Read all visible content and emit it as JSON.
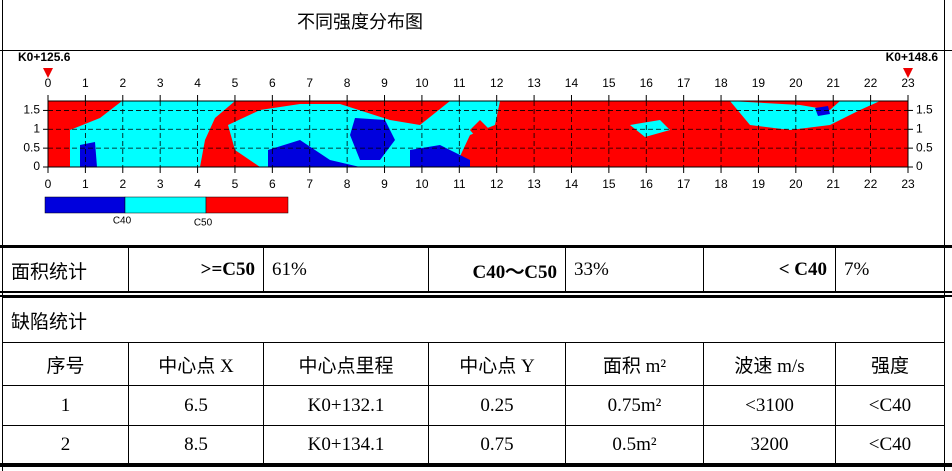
{
  "title": "不同强度分布图",
  "figure": {
    "start_label": "K0+125.6",
    "end_label": "K0+148.6",
    "xlim": [
      0,
      23
    ],
    "xticks": [
      0,
      1,
      2,
      3,
      4,
      5,
      6,
      7,
      8,
      9,
      10,
      11,
      12,
      13,
      14,
      15,
      16,
      17,
      18,
      19,
      20,
      21,
      22,
      23
    ],
    "ylim": [
      0,
      1.75
    ],
    "yticks": [
      0,
      0.5,
      1,
      1.5
    ],
    "legend_labels": [
      "C40",
      "C50"
    ]
  },
  "area_stats": {
    "label": "面积统计",
    "items": [
      {
        "grade": ">=C50",
        "ratio": "61%"
      },
      {
        "grade": "C40～C50",
        "ratio": "33%"
      },
      {
        "grade": "< C40",
        "ratio": "7%"
      }
    ]
  },
  "defects": {
    "title": "缺陷统计",
    "headers": [
      "序号",
      "中心点 X",
      "中心点里程",
      "中心点 Y",
      "面积 m²",
      "波速 m/s",
      "强度"
    ],
    "rows": [
      [
        "1",
        "6.5",
        "K0+132.1",
        "0.25",
        "0.75m²",
        "<3100",
        "<C40"
      ],
      [
        "2",
        "8.5",
        "K0+134.1",
        "0.75",
        "0.5m²",
        "3200",
        "<C40"
      ]
    ]
  }
}
